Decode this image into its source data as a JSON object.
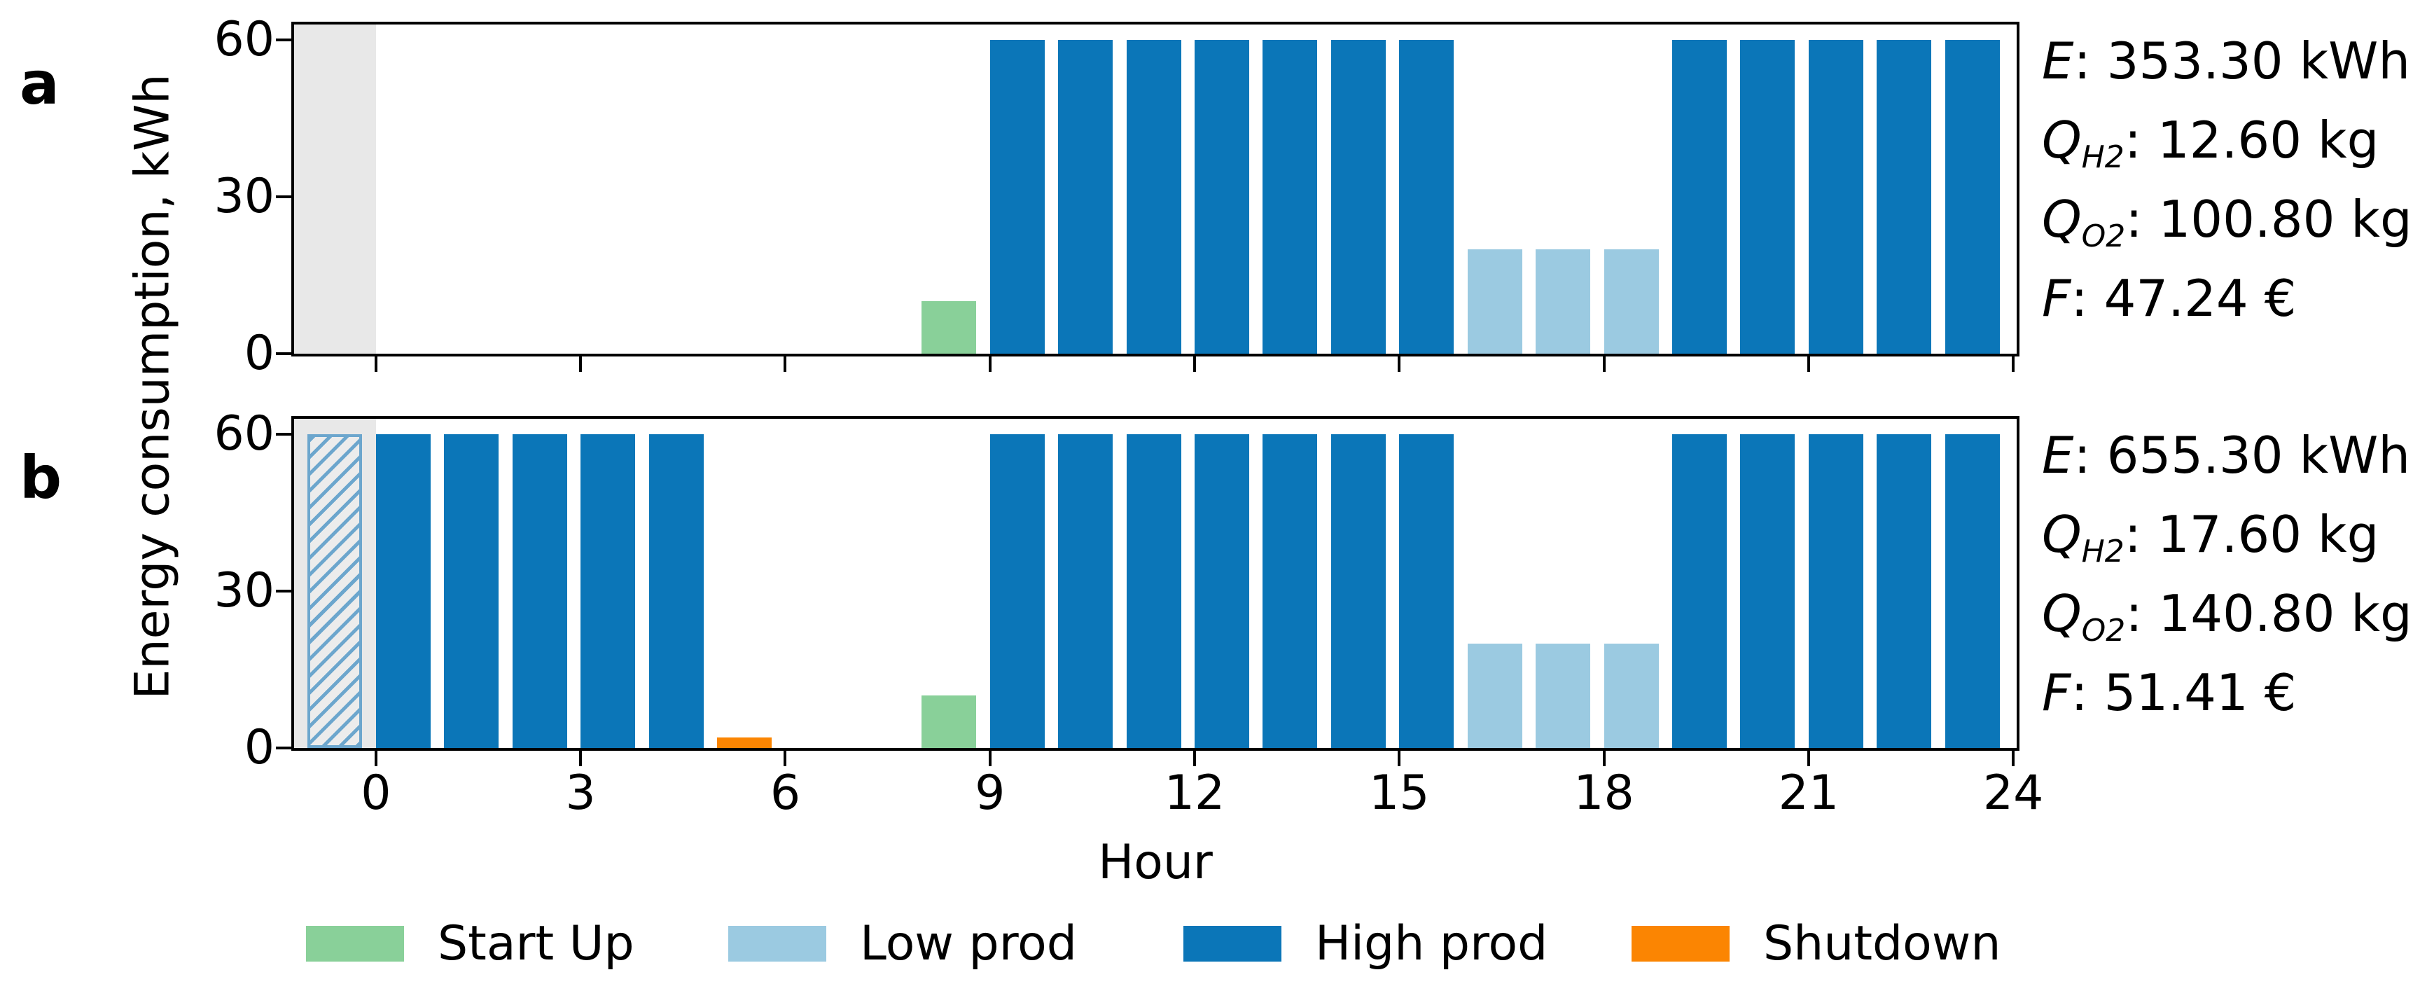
{
  "figure": {
    "ylabel": "Energy consumption, kWh",
    "xlabel": "Hour",
    "annotation_separator": ": ",
    "background": "#ffffff",
    "axis_color": "#000000"
  },
  "colors": {
    "startup": "#89d099",
    "low": "#9bcae1",
    "high": "#0b76b8",
    "shutdown": "#fb8502",
    "preday_shade": "#e8e8e8",
    "carryover_hatch": "#6ca6cd",
    "carryover_face": "#ececec"
  },
  "legend": {
    "items": [
      {
        "label": "Start Up",
        "state": "startup"
      },
      {
        "label": "Low prod",
        "state": "low"
      },
      {
        "label": "High prod",
        "state": "high"
      },
      {
        "label": "Shutdown",
        "state": "shutdown"
      }
    ]
  },
  "chart_data": [
    {
      "type": "bar",
      "panel_label": "a",
      "title": "",
      "ylabel": "Energy consumption, kWh",
      "xlabel": "",
      "x_range": [
        -1.2,
        24.05
      ],
      "y_range": [
        0,
        63
      ],
      "xticks": [
        0,
        3,
        6,
        9,
        12,
        15,
        18,
        21,
        24
      ],
      "xtick_labels_shown": false,
      "yticks": [
        0,
        30,
        60
      ],
      "bar_width": 0.8,
      "bar_align": "edge",
      "grid": false,
      "preday_shade_range": [
        -1.2,
        0
      ],
      "bars": [
        {
          "hour": 8,
          "value": 10,
          "state": "startup"
        },
        {
          "hour": 9,
          "value": 60,
          "state": "high"
        },
        {
          "hour": 10,
          "value": 60,
          "state": "high"
        },
        {
          "hour": 11,
          "value": 60,
          "state": "high"
        },
        {
          "hour": 12,
          "value": 60,
          "state": "high"
        },
        {
          "hour": 13,
          "value": 60,
          "state": "high"
        },
        {
          "hour": 14,
          "value": 60,
          "state": "high"
        },
        {
          "hour": 15,
          "value": 60,
          "state": "high"
        },
        {
          "hour": 16,
          "value": 20,
          "state": "low"
        },
        {
          "hour": 17,
          "value": 20,
          "state": "low"
        },
        {
          "hour": 18,
          "value": 20,
          "state": "low"
        },
        {
          "hour": 19,
          "value": 60,
          "state": "high"
        },
        {
          "hour": 20,
          "value": 60,
          "state": "high"
        },
        {
          "hour": 21,
          "value": 60,
          "state": "high"
        },
        {
          "hour": 22,
          "value": 60,
          "state": "high"
        },
        {
          "hour": 23,
          "value": 60,
          "state": "high"
        }
      ],
      "annotations": [
        {
          "sym": "E",
          "sub": "",
          "value": "353.30 kWh"
        },
        {
          "sym": "Q",
          "sub": "H2",
          "value": "12.60 kg"
        },
        {
          "sym": "Q",
          "sub": "O2",
          "value": "100.80 kg"
        },
        {
          "sym": "F",
          "sub": "",
          "value": "47.24 €"
        }
      ]
    },
    {
      "type": "bar",
      "panel_label": "b",
      "title": "",
      "ylabel": "Energy consumption, kWh",
      "xlabel": "Hour",
      "x_range": [
        -1.2,
        24.05
      ],
      "y_range": [
        0,
        63
      ],
      "xticks": [
        0,
        3,
        6,
        9,
        12,
        15,
        18,
        21,
        24
      ],
      "xtick_labels_shown": true,
      "yticks": [
        0,
        30,
        60
      ],
      "bar_width": 0.8,
      "bar_align": "edge",
      "grid": false,
      "preday_shade_range": [
        -1.2,
        0
      ],
      "bars": [
        {
          "hour": -1,
          "value": 60,
          "state": "carryover"
        },
        {
          "hour": 0,
          "value": 60,
          "state": "high"
        },
        {
          "hour": 1,
          "value": 60,
          "state": "high"
        },
        {
          "hour": 2,
          "value": 60,
          "state": "high"
        },
        {
          "hour": 3,
          "value": 60,
          "state": "high"
        },
        {
          "hour": 4,
          "value": 60,
          "state": "high"
        },
        {
          "hour": 5,
          "value": 2,
          "state": "shutdown"
        },
        {
          "hour": 8,
          "value": 10,
          "state": "startup"
        },
        {
          "hour": 9,
          "value": 60,
          "state": "high"
        },
        {
          "hour": 10,
          "value": 60,
          "state": "high"
        },
        {
          "hour": 11,
          "value": 60,
          "state": "high"
        },
        {
          "hour": 12,
          "value": 60,
          "state": "high"
        },
        {
          "hour": 13,
          "value": 60,
          "state": "high"
        },
        {
          "hour": 14,
          "value": 60,
          "state": "high"
        },
        {
          "hour": 15,
          "value": 60,
          "state": "high"
        },
        {
          "hour": 16,
          "value": 20,
          "state": "low"
        },
        {
          "hour": 17,
          "value": 20,
          "state": "low"
        },
        {
          "hour": 18,
          "value": 20,
          "state": "low"
        },
        {
          "hour": 19,
          "value": 60,
          "state": "high"
        },
        {
          "hour": 20,
          "value": 60,
          "state": "high"
        },
        {
          "hour": 21,
          "value": 60,
          "state": "high"
        },
        {
          "hour": 22,
          "value": 60,
          "state": "high"
        },
        {
          "hour": 23,
          "value": 60,
          "state": "high"
        }
      ],
      "annotations": [
        {
          "sym": "E",
          "sub": "",
          "value": "655.30 kWh"
        },
        {
          "sym": "Q",
          "sub": "H2",
          "value": "17.60 kg"
        },
        {
          "sym": "Q",
          "sub": "O2",
          "value": "140.80 kg"
        },
        {
          "sym": "F",
          "sub": "",
          "value": "51.41 €"
        }
      ]
    }
  ]
}
